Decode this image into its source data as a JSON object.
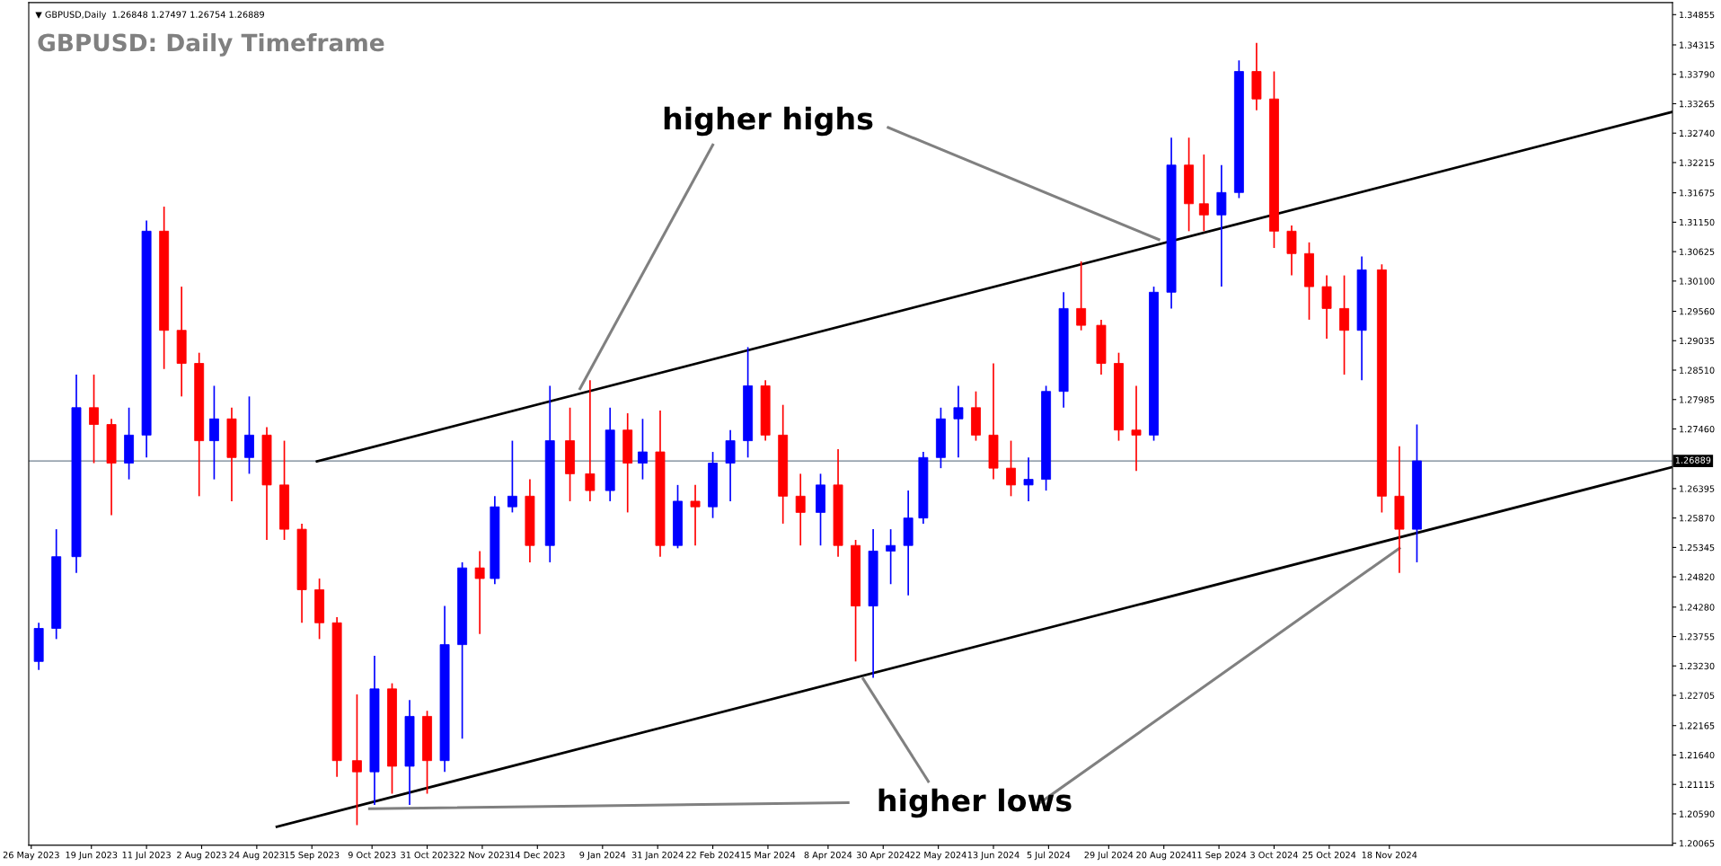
{
  "chart_data": {
    "type": "candlestick",
    "title": "GBPUSD: Daily Timeframe",
    "subtitle": "▼ GBPUSD,Daily  1.26848 1.27497 1.26754 1.26889",
    "x": [
      "2023-05-29",
      "2023-06-05",
      "2023-06-13",
      "2023-06-20",
      "2023-06-27",
      "2023-07-04",
      "2023-07-11",
      "2023-07-18",
      "2023-07-25",
      "2023-08-01",
      "2023-08-07",
      "2023-08-14",
      "2023-08-21",
      "2023-08-28",
      "2023-09-04",
      "2023-09-11",
      "2023-09-18",
      "2023-09-25",
      "2023-10-03",
      "2023-10-10",
      "2023-10-17",
      "2023-10-24",
      "2023-10-31",
      "2023-11-07",
      "2023-11-14",
      "2023-11-21",
      "2023-11-27",
      "2023-12-04",
      "2023-12-11",
      "2023-12-19",
      "2023-12-27",
      "2024-01-04",
      "2024-01-12",
      "2024-01-19",
      "2024-01-25",
      "2024-02-01",
      "2024-02-08",
      "2024-02-15",
      "2024-02-22",
      "2024-02-29",
      "2024-03-07",
      "2024-03-14",
      "2024-03-21",
      "2024-03-28",
      "2024-04-05",
      "2024-04-12",
      "2024-04-19",
      "2024-04-26",
      "2024-05-03",
      "2024-05-10",
      "2024-05-16",
      "2024-05-23",
      "2024-05-30",
      "2024-06-06",
      "2024-06-13",
      "2024-06-20",
      "2024-06-27",
      "2024-07-04",
      "2024-07-11",
      "2024-07-18",
      "2024-07-26",
      "2024-08-02",
      "2024-08-09",
      "2024-08-16",
      "2024-08-23",
      "2024-08-30",
      "2024-09-05",
      "2024-09-12",
      "2024-09-19",
      "2024-09-26",
      "2024-10-03",
      "2024-10-10",
      "2024-10-17",
      "2024-10-24",
      "2024-10-31",
      "2024-11-07",
      "2024-11-15",
      "2024-11-22",
      "2024-11-29"
    ],
    "ohlc": [
      [
        1.2331,
        1.24,
        1.2316,
        1.239
      ],
      [
        1.239,
        1.2567,
        1.2371,
        1.2518
      ],
      [
        1.2518,
        1.2843,
        1.2489,
        1.2784
      ],
      [
        1.2784,
        1.2843,
        1.2685,
        1.2754
      ],
      [
        1.2754,
        1.2764,
        1.2592,
        1.2685
      ],
      [
        1.2685,
        1.2784,
        1.2656,
        1.2735
      ],
      [
        1.2735,
        1.3118,
        1.2695,
        1.3099
      ],
      [
        1.3099,
        1.3143,
        1.2853,
        1.2922
      ],
      [
        1.2922,
        1.3,
        1.2804,
        1.2863
      ],
      [
        1.2863,
        1.2882,
        1.2626,
        1.2725
      ],
      [
        1.2725,
        1.2823,
        1.2656,
        1.2764
      ],
      [
        1.2764,
        1.2784,
        1.2617,
        1.2695
      ],
      [
        1.2695,
        1.2804,
        1.2666,
        1.2735
      ],
      [
        1.2735,
        1.2749,
        1.2548,
        1.2646
      ],
      [
        1.2646,
        1.2725,
        1.2548,
        1.2567
      ],
      [
        1.2567,
        1.2577,
        1.24,
        1.2459
      ],
      [
        1.2459,
        1.2479,
        1.2371,
        1.24
      ],
      [
        1.24,
        1.241,
        1.2125,
        1.2154
      ],
      [
        1.2154,
        1.2272,
        1.2039,
        1.2134
      ],
      [
        1.2134,
        1.2341,
        1.2075,
        1.2282
      ],
      [
        1.2282,
        1.2292,
        1.2095,
        1.2144
      ],
      [
        1.2144,
        1.2262,
        1.2075,
        1.2233
      ],
      [
        1.2233,
        1.2243,
        1.2095,
        1.2154
      ],
      [
        1.2154,
        1.243,
        1.2134,
        1.2361
      ],
      [
        1.2361,
        1.2508,
        1.2193,
        1.2498
      ],
      [
        1.2498,
        1.2528,
        1.238,
        1.2479
      ],
      [
        1.2479,
        1.2626,
        1.2469,
        1.2607
      ],
      [
        1.2607,
        1.2725,
        1.2597,
        1.2626
      ],
      [
        1.2626,
        1.2656,
        1.2508,
        1.2538
      ],
      [
        1.2538,
        1.2823,
        1.2508,
        1.2725
      ],
      [
        1.2725,
        1.2784,
        1.2617,
        1.2666
      ],
      [
        1.2666,
        1.2833,
        1.2617,
        1.2636
      ],
      [
        1.2636,
        1.2784,
        1.2617,
        1.2744
      ],
      [
        1.2744,
        1.2774,
        1.2597,
        1.2685
      ],
      [
        1.2685,
        1.2764,
        1.2656,
        1.2705
      ],
      [
        1.2705,
        1.2779,
        1.2518,
        1.2538
      ],
      [
        1.2538,
        1.2646,
        1.2533,
        1.2617
      ],
      [
        1.2617,
        1.2646,
        1.2538,
        1.2607
      ],
      [
        1.2607,
        1.2705,
        1.2587,
        1.2685
      ],
      [
        1.2685,
        1.2744,
        1.2617,
        1.2725
      ],
      [
        1.2725,
        1.2892,
        1.2695,
        1.2823
      ],
      [
        1.2823,
        1.2833,
        1.2725,
        1.2735
      ],
      [
        1.2735,
        1.2789,
        1.2577,
        1.2626
      ],
      [
        1.2626,
        1.2666,
        1.2538,
        1.2597
      ],
      [
        1.2597,
        1.2666,
        1.2538,
        1.2646
      ],
      [
        1.2646,
        1.271,
        1.2518,
        1.2538
      ],
      [
        1.2538,
        1.2548,
        1.2331,
        1.243
      ],
      [
        1.243,
        1.2567,
        1.2302,
        1.2528
      ],
      [
        1.2528,
        1.2567,
        1.2469,
        1.2538
      ],
      [
        1.2538,
        1.2636,
        1.2449,
        1.2587
      ],
      [
        1.2587,
        1.2705,
        1.2577,
        1.2695
      ],
      [
        1.2695,
        1.2784,
        1.2676,
        1.2764
      ],
      [
        1.2764,
        1.2823,
        1.2695,
        1.2784
      ],
      [
        1.2784,
        1.2813,
        1.2725,
        1.2735
      ],
      [
        1.2735,
        1.2863,
        1.2656,
        1.2676
      ],
      [
        1.2676,
        1.2725,
        1.2626,
        1.2646
      ],
      [
        1.2646,
        1.2695,
        1.2617,
        1.2656
      ],
      [
        1.2656,
        1.2823,
        1.2636,
        1.2813
      ],
      [
        1.2813,
        1.299,
        1.2784,
        1.2961
      ],
      [
        1.2961,
        1.3045,
        1.2922,
        1.2931
      ],
      [
        1.2931,
        1.2941,
        1.2843,
        1.2863
      ],
      [
        1.2863,
        1.2882,
        1.2725,
        1.2744
      ],
      [
        1.2744,
        1.2823,
        1.2671,
        1.2735
      ],
      [
        1.2735,
        1.3,
        1.2725,
        1.299
      ],
      [
        1.299,
        1.3266,
        1.2961,
        1.3217
      ],
      [
        1.3217,
        1.3266,
        1.3099,
        1.3148
      ],
      [
        1.3148,
        1.3236,
        1.3099,
        1.3128
      ],
      [
        1.3128,
        1.3217,
        1.3,
        1.3168
      ],
      [
        1.3168,
        1.3404,
        1.3158,
        1.3384
      ],
      [
        1.3384,
        1.3435,
        1.3315,
        1.3335
      ],
      [
        1.3335,
        1.3384,
        1.3069,
        1.3099
      ],
      [
        1.3099,
        1.3109,
        1.302,
        1.3059
      ],
      [
        1.3059,
        1.3079,
        1.2941,
        1.3
      ],
      [
        1.3,
        1.302,
        1.2907,
        1.2961
      ],
      [
        1.2961,
        1.302,
        1.2843,
        1.2922
      ],
      [
        1.2922,
        1.3054,
        1.2833,
        1.303
      ],
      [
        1.303,
        1.304,
        1.2597,
        1.2626
      ],
      [
        1.2626,
        1.2715,
        1.2489,
        1.2567
      ],
      [
        1.2567,
        1.2754,
        1.2508,
        1.2689
      ]
    ],
    "colors": [
      "#0000ff",
      "#0000ff",
      "#0000ff",
      "#ff0000",
      "#ff0000",
      "#0000ff",
      "#0000ff",
      "#ff0000",
      "#ff0000",
      "#ff0000",
      "#0000ff",
      "#ff0000",
      "#0000ff",
      "#ff0000",
      "#ff0000",
      "#ff0000",
      "#ff0000",
      "#ff0000",
      "#ff0000",
      "#0000ff",
      "#ff0000",
      "#0000ff",
      "#ff0000",
      "#0000ff",
      "#0000ff",
      "#ff0000",
      "#0000ff",
      "#0000ff",
      "#ff0000",
      "#0000ff",
      "#ff0000",
      "#ff0000",
      "#0000ff",
      "#ff0000",
      "#0000ff",
      "#ff0000",
      "#0000ff",
      "#ff0000",
      "#0000ff",
      "#0000ff",
      "#0000ff",
      "#ff0000",
      "#ff0000",
      "#ff0000",
      "#0000ff",
      "#ff0000",
      "#ff0000",
      "#0000ff",
      "#0000ff",
      "#0000ff",
      "#0000ff",
      "#0000ff",
      "#0000ff",
      "#ff0000",
      "#ff0000",
      "#ff0000",
      "#0000ff",
      "#0000ff",
      "#0000ff",
      "#ff0000",
      "#ff0000",
      "#ff0000",
      "#ff0000",
      "#0000ff",
      "#0000ff",
      "#ff0000",
      "#ff0000",
      "#0000ff",
      "#0000ff",
      "#ff0000",
      "#ff0000",
      "#ff0000",
      "#ff0000",
      "#ff0000",
      "#ff0000",
      "#0000ff",
      "#ff0000",
      "#ff0000",
      "#0000ff"
    ],
    "series": [
      {
        "type": "line",
        "color": "#000000",
        "x": [
          "2023-09-17",
          "2025-03-11"
        ],
        "values": [
          1.2688,
          1.3312
        ]
      },
      {
        "type": "line",
        "color": "#000000",
        "x": [
          "2023-09-01",
          "2025-03-11"
        ],
        "values": [
          1.2036,
          1.2678
        ]
      },
      {
        "type": "line",
        "color": "#808080",
        "x": [
          "2024-02-22",
          "2023-12-31"
        ],
        "values": [
          1.3253,
          1.2818
        ]
      },
      {
        "type": "line",
        "color": "#808080",
        "x": [
          "2024-05-02",
          "2024-08-18"
        ],
        "values": [
          1.3284,
          1.3084
        ]
      },
      {
        "type": "line",
        "color": "#808080",
        "x": [
          "2024-04-16",
          "2023-10-08"
        ],
        "values": [
          1.2079,
          1.2068
        ]
      },
      {
        "type": "line",
        "color": "#808080",
        "x": [
          "2024-05-18",
          "2024-04-22"
        ],
        "values": [
          1.2117,
          1.23
        ]
      },
      {
        "type": "line",
        "color": "#808080",
        "x": [
          "2024-07-02",
          "2024-11-22"
        ],
        "values": [
          1.208,
          1.2533
        ]
      }
    ],
    "annotations": [
      "higher highs",
      "higher lows"
    ],
    "ref_lines": [
      {
        "axis": "y",
        "value": 1.26889,
        "label": "1.26889",
        "color": "#708090"
      }
    ],
    "xlim": [
      "2023-05-25",
      "2025-03-11"
    ],
    "xticks": [
      {
        "value": "2023-05-26",
        "label": "26 May 2023"
      },
      {
        "value": "2023-06-19",
        "label": "19 Jun 2023"
      },
      {
        "value": "2023-07-11",
        "label": "11 Jul 2023"
      },
      {
        "value": "2023-08-02",
        "label": "2 Aug 2023"
      },
      {
        "value": "2023-08-24",
        "label": "24 Aug 2023"
      },
      {
        "value": "2023-09-15",
        "label": "15 Sep 2023"
      },
      {
        "value": "2023-10-09",
        "label": "9 Oct 2023"
      },
      {
        "value": "2023-10-31",
        "label": "31 Oct 2023"
      },
      {
        "value": "2023-11-22",
        "label": "22 Nov 2023"
      },
      {
        "value": "2023-12-14",
        "label": "14 Dec 2023"
      },
      {
        "value": "2024-01-09",
        "label": "9 Jan 2024"
      },
      {
        "value": "2024-01-31",
        "label": "31 Jan 2024"
      },
      {
        "value": "2024-02-22",
        "label": "22 Feb 2024"
      },
      {
        "value": "2024-03-15",
        "label": "15 Mar 2024"
      },
      {
        "value": "2024-04-08",
        "label": "8 Apr 2024"
      },
      {
        "value": "2024-04-30",
        "label": "30 Apr 2024"
      },
      {
        "value": "2024-05-22",
        "label": "22 May 2024"
      },
      {
        "value": "2024-06-13",
        "label": "13 Jun 2024"
      },
      {
        "value": "2024-07-05",
        "label": "5 Jul 2024"
      },
      {
        "value": "2024-07-29",
        "label": "29 Jul 2024"
      },
      {
        "value": "2024-08-20",
        "label": "20 Aug 2024"
      },
      {
        "value": "2024-09-11",
        "label": "11 Sep 2024"
      },
      {
        "value": "2024-10-03",
        "label": "3 Oct 2024"
      },
      {
        "value": "2024-10-25",
        "label": "25 Oct 2024"
      },
      {
        "value": "2024-11-18",
        "label": "18 Nov 2024"
      }
    ],
    "ylim": [
      1.2003,
      1.3507
    ],
    "yticks": [
      {
        "value": 1.20065,
        "label": "1.20065"
      },
      {
        "value": 1.2059,
        "label": "1.20590"
      },
      {
        "value": 1.21115,
        "label": "1.21115"
      },
      {
        "value": 1.2164,
        "label": "1.21640"
      },
      {
        "value": 1.22165,
        "label": "1.22165"
      },
      {
        "value": 1.22705,
        "label": "1.22705"
      },
      {
        "value": 1.2323,
        "label": "1.23230"
      },
      {
        "value": 1.23755,
        "label": "1.23755"
      },
      {
        "value": 1.2428,
        "label": "1.24280"
      },
      {
        "value": 1.2482,
        "label": "1.24820"
      },
      {
        "value": 1.25345,
        "label": "1.25345"
      },
      {
        "value": 1.2587,
        "label": "1.25870"
      },
      {
        "value": 1.26395,
        "label": "1.26395"
      },
      {
        "value": 1.2746,
        "label": "1.27460"
      },
      {
        "value": 1.27985,
        "label": "1.27985"
      },
      {
        "value": 1.2851,
        "label": "1.28510"
      },
      {
        "value": 1.29035,
        "label": "1.29035"
      },
      {
        "value": 1.2956,
        "label": "1.29560"
      },
      {
        "value": 1.301,
        "label": "1.30100"
      },
      {
        "value": 1.30625,
        "label": "1.30625"
      },
      {
        "value": 1.3115,
        "label": "1.31150"
      },
      {
        "value": 1.31675,
        "label": "1.31675"
      },
      {
        "value": 1.32215,
        "label": "1.32215"
      },
      {
        "value": 1.3274,
        "label": "1.32740"
      },
      {
        "value": 1.33265,
        "label": "1.33265"
      },
      {
        "value": 1.3379,
        "label": "1.33790"
      },
      {
        "value": 1.34315,
        "label": "1.34315"
      },
      {
        "value": 1.34855,
        "label": "1.34855"
      }
    ],
    "grid": false,
    "legend": false
  }
}
